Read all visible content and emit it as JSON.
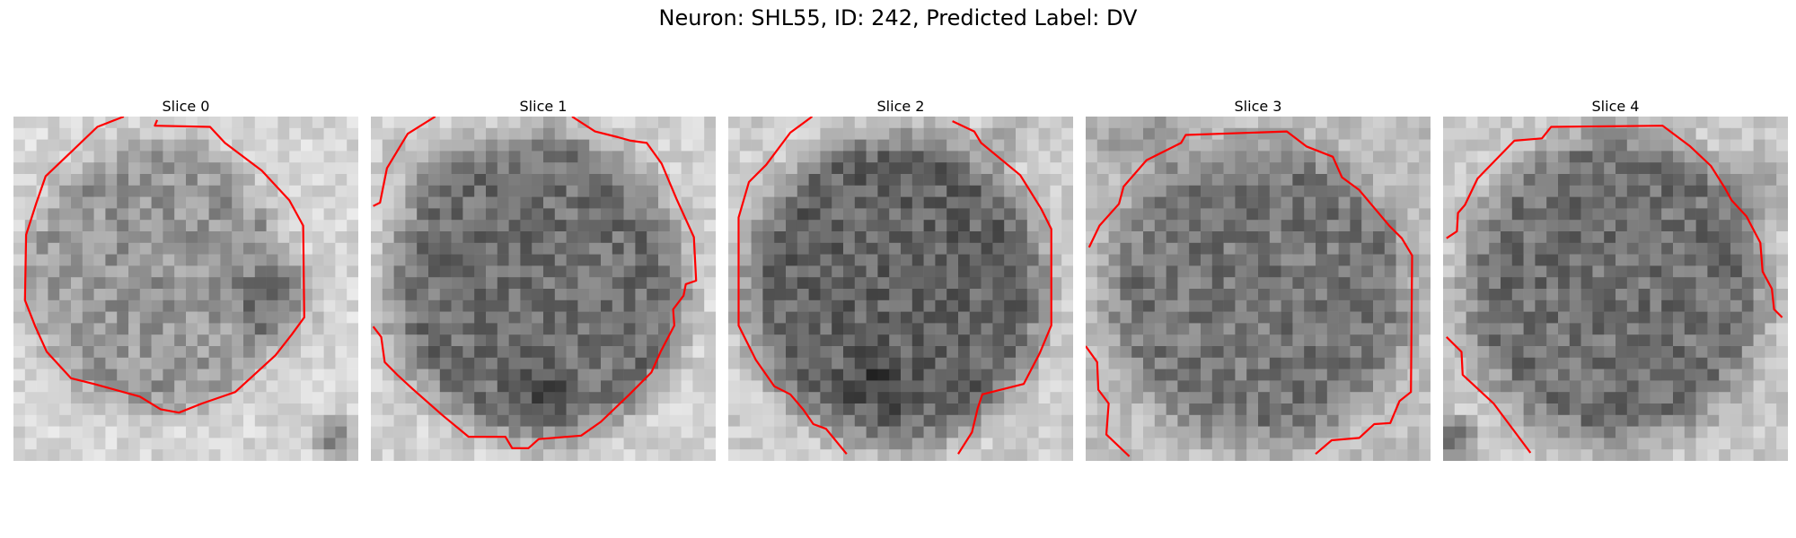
{
  "figure": {
    "title": "Neuron: SHL55, ID: 242, Predicted Label: DV"
  },
  "panels": [
    {
      "title": "Slice 0"
    },
    {
      "title": "Slice 1"
    },
    {
      "title": "Slice 2"
    },
    {
      "title": "Slice 3"
    },
    {
      "title": "Slice 4"
    }
  ],
  "colors": {
    "contour": "#ff0000",
    "colormap": "gray"
  }
}
